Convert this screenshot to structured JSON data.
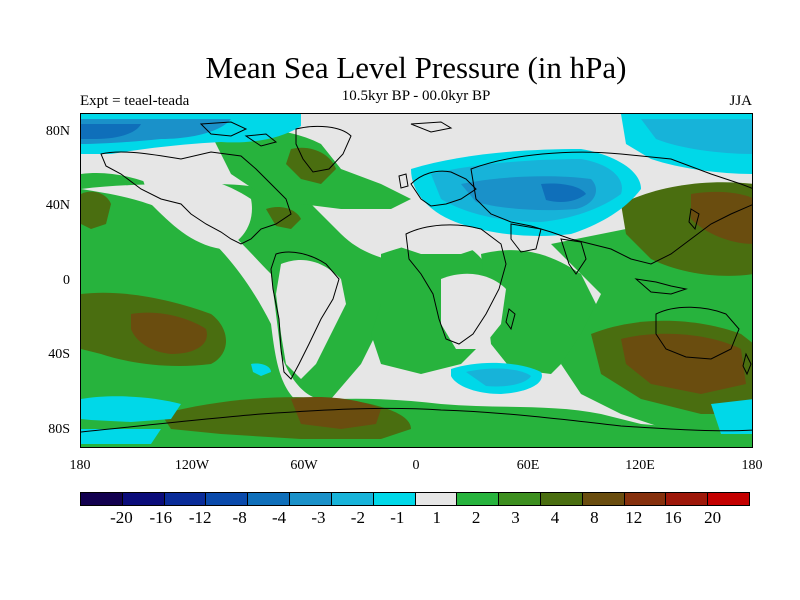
{
  "title": "Mean Sea Level Pressure (in hPa)",
  "subtitle_left": "Expt = teael-teada",
  "subtitle_center": "10.5kyr BP - 00.0kyr BP",
  "subtitle_right": "JJA",
  "lat_labels": [
    "80N",
    "40N",
    "0",
    "40S",
    "80S"
  ],
  "lon_labels": [
    "180",
    "120W",
    "60W",
    "0",
    "60E",
    "120E",
    "180"
  ],
  "colorbar": {
    "labels": [
      "-20",
      "-16",
      "-12",
      "-8",
      "-4",
      "-3",
      "-2",
      "-1",
      "1",
      "2",
      "3",
      "4",
      "8",
      "12",
      "16",
      "20"
    ],
    "colors": [
      "#12004f",
      "#0b0c7a",
      "#0a2c99",
      "#0a4aab",
      "#0f6fba",
      "#1a91c9",
      "#17b3d9",
      "#00d8e8",
      "#e6e6e6",
      "#27b33d",
      "#3d8f1f",
      "#4a6e10",
      "#6a4d0f",
      "#86300d",
      "#9e180a",
      "#c40000"
    ]
  },
  "colors": {
    "land_green": "#27b33d",
    "dark_green": "#3d8f1f",
    "olive": "#4a6e10",
    "brown": "#6a4d0f",
    "neutral": "#e6e6e6",
    "cyan": "#00d8e8",
    "light_blue": "#17b3d9",
    "mid_blue": "#1a91c9",
    "blue": "#0f6fba"
  }
}
